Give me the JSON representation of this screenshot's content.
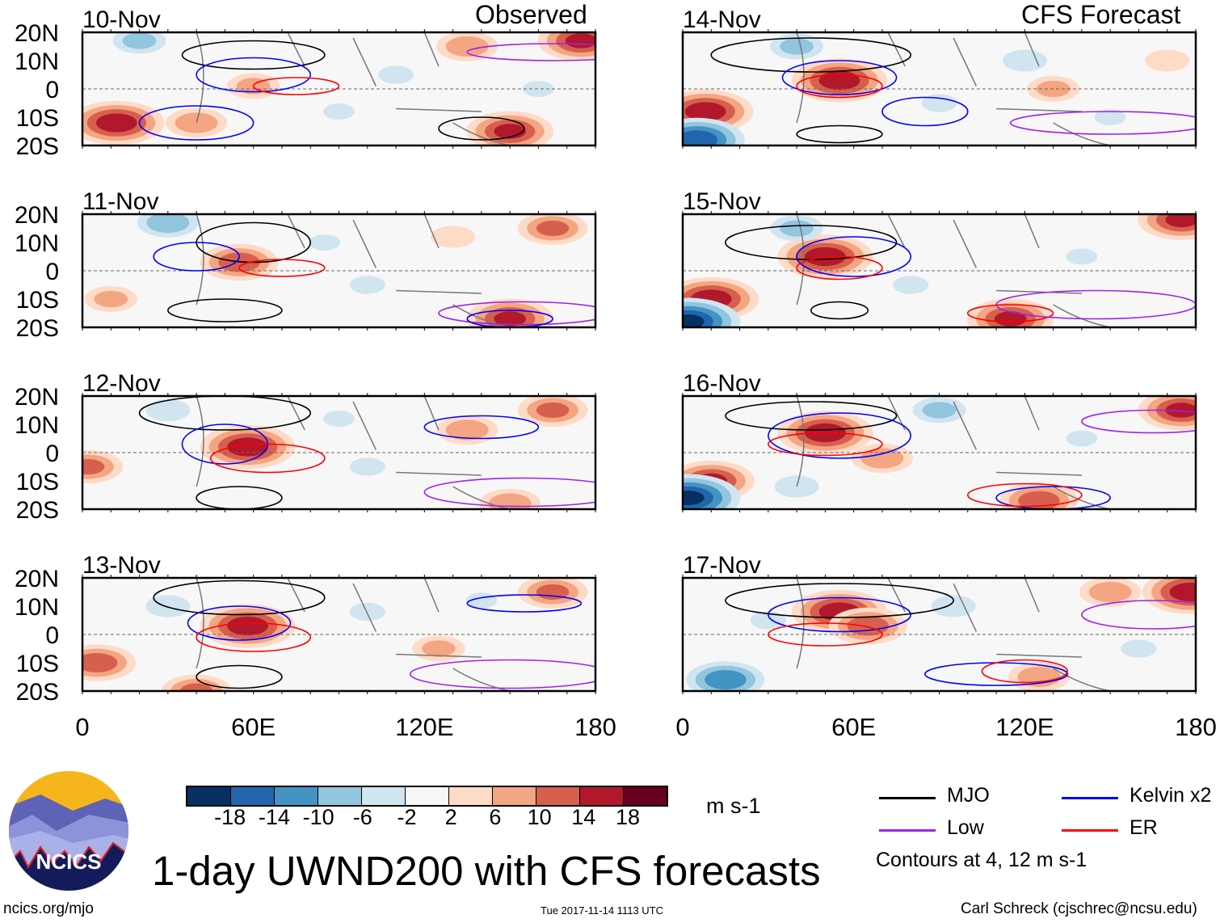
{
  "header": {
    "left_label": "Observed",
    "right_label": "CFS Forecast"
  },
  "lat_ticks": [
    "20N",
    "10N",
    "0",
    "10S",
    "20S"
  ],
  "lon_ticks": [
    "0",
    "60E",
    "120E",
    "180"
  ],
  "colorbar": {
    "colors": [
      "#053061",
      "#2166ac",
      "#4393c3",
      "#92c5de",
      "#d1e5f0",
      "#f7f7f7",
      "#fddbc7",
      "#f4a582",
      "#d6604d",
      "#b2182b",
      "#67001f"
    ],
    "labels": [
      "-18",
      "-14",
      "-10",
      "-6",
      "-2",
      "2",
      "6",
      "10",
      "14",
      "18"
    ],
    "units": "m s-1"
  },
  "legend": {
    "items": [
      {
        "label": "MJO",
        "color": "#000000"
      },
      {
        "label": "Kelvin x2",
        "color": "#0000ff"
      },
      {
        "label": "Low",
        "color": "#a020f0"
      },
      {
        "label": "ER",
        "color": "#ff0000"
      }
    ],
    "note": "Contours at 4, 12 m s-1"
  },
  "title": "1-day UWND200 with CFS forecasts",
  "logo_text": "NCICS",
  "footer": {
    "left": "ncics.org/mjo",
    "center": "Tue 2017-11-14 1113 UTC",
    "right": "Carl Schreck (cjschrec@ncsu.edu)"
  },
  "chart_data": {
    "type": "heatmap",
    "variable": "200-hPa zonal wind anomaly (m s-1)",
    "lon_range": [
      0,
      180
    ],
    "lat_range": [
      -20,
      20
    ],
    "panels": [
      {
        "date": "10-Nov",
        "column": "observed",
        "blobs": [
          [
            135,
            15,
            10
          ],
          [
            175,
            17,
            16
          ],
          [
            12,
            -12,
            18
          ],
          [
            60,
            1,
            8
          ],
          [
            150,
            -15,
            16
          ],
          [
            40,
            -12,
            10
          ],
          [
            20,
            17,
            -8
          ],
          [
            110,
            5,
            -4
          ],
          [
            90,
            -8,
            -3
          ],
          [
            160,
            0,
            -3
          ]
        ],
        "contours": [
          [
            "MJO",
            60,
            12,
            25,
            5
          ],
          [
            "Kelvin",
            60,
            5,
            20,
            6
          ],
          [
            "ER",
            75,
            1,
            15,
            3
          ],
          [
            "MJO",
            140,
            -14,
            15,
            4
          ],
          [
            "Low",
            165,
            13,
            30,
            3
          ],
          [
            "Kelvin",
            40,
            -12,
            20,
            6
          ]
        ]
      },
      {
        "date": "11-Nov",
        "column": "observed",
        "blobs": [
          [
            165,
            15,
            12
          ],
          [
            55,
            3,
            14
          ],
          [
            30,
            17,
            -10
          ],
          [
            150,
            -17,
            16
          ],
          [
            10,
            -10,
            8
          ],
          [
            100,
            -5,
            -4
          ],
          [
            130,
            12,
            6
          ],
          [
            85,
            10,
            -3
          ]
        ],
        "contours": [
          [
            "MJO",
            60,
            10,
            20,
            7
          ],
          [
            "ER",
            70,
            1,
            15,
            3
          ],
          [
            "Kelvin",
            40,
            5,
            15,
            5
          ],
          [
            "MJO",
            50,
            -14,
            20,
            4
          ],
          [
            "Low",
            155,
            -15,
            30,
            4
          ],
          [
            "Kelvin",
            150,
            -17,
            15,
            3
          ]
        ]
      },
      {
        "date": "12-Nov",
        "column": "observed",
        "blobs": [
          [
            58,
            2,
            18
          ],
          [
            165,
            15,
            12
          ],
          [
            135,
            8,
            10
          ],
          [
            2,
            -5,
            12
          ],
          [
            150,
            -18,
            10
          ],
          [
            100,
            -5,
            -4
          ],
          [
            30,
            15,
            -6
          ],
          [
            90,
            12,
            -3
          ]
        ],
        "contours": [
          [
            "MJO",
            50,
            14,
            30,
            6
          ],
          [
            "Kelvin",
            50,
            3,
            15,
            7
          ],
          [
            "ER",
            65,
            -2,
            20,
            5
          ],
          [
            "MJO",
            55,
            -16,
            15,
            4
          ],
          [
            "Low",
            155,
            -14,
            35,
            5
          ],
          [
            "Kelvin",
            140,
            9,
            20,
            4
          ]
        ]
      },
      {
        "date": "13-Nov",
        "column": "observed",
        "blobs": [
          [
            58,
            3,
            18
          ],
          [
            165,
            15,
            12
          ],
          [
            5,
            -10,
            14
          ],
          [
            125,
            -5,
            8
          ],
          [
            40,
            -20,
            12
          ],
          [
            30,
            10,
            -6
          ],
          [
            100,
            8,
            -4
          ],
          [
            140,
            12,
            -3
          ]
        ],
        "contours": [
          [
            "MJO",
            55,
            13,
            30,
            6
          ],
          [
            "Kelvin",
            55,
            4,
            18,
            6
          ],
          [
            "ER",
            60,
            -1,
            20,
            5
          ],
          [
            "MJO",
            55,
            -15,
            15,
            4
          ],
          [
            "Low",
            150,
            -14,
            35,
            5
          ],
          [
            "Kelvin",
            155,
            11,
            20,
            3
          ]
        ]
      },
      {
        "date": "14-Nov",
        "column": "forecast",
        "blobs": [
          [
            55,
            3,
            18
          ],
          [
            8,
            -8,
            18
          ],
          [
            5,
            -18,
            -18
          ],
          [
            120,
            10,
            -6
          ],
          [
            170,
            10,
            6
          ],
          [
            130,
            0,
            8
          ],
          [
            40,
            15,
            -8
          ],
          [
            90,
            -5,
            -4
          ],
          [
            150,
            -10,
            -3
          ]
        ],
        "contours": [
          [
            "MJO",
            45,
            12,
            35,
            6
          ],
          [
            "Kelvin",
            55,
            4,
            20,
            6
          ],
          [
            "ER",
            55,
            1,
            15,
            4
          ],
          [
            "Kelvin",
            85,
            -8,
            15,
            5
          ],
          [
            "MJO",
            55,
            -16,
            15,
            3
          ],
          [
            "Low",
            150,
            -12,
            35,
            4
          ]
        ]
      },
      {
        "date": "15-Nov",
        "column": "forecast",
        "blobs": [
          [
            50,
            5,
            18
          ],
          [
            10,
            -10,
            18
          ],
          [
            2,
            -18,
            -20
          ],
          [
            175,
            18,
            16
          ],
          [
            115,
            -17,
            16
          ],
          [
            40,
            15,
            -8
          ],
          [
            80,
            -5,
            -4
          ],
          [
            140,
            5,
            -3
          ]
        ],
        "contours": [
          [
            "MJO",
            45,
            10,
            30,
            6
          ],
          [
            "Kelvin",
            60,
            5,
            20,
            7
          ],
          [
            "ER",
            55,
            1,
            15,
            4
          ],
          [
            "MJO",
            55,
            -14,
            10,
            3
          ],
          [
            "ER",
            115,
            -15,
            15,
            3
          ],
          [
            "Low",
            145,
            -12,
            35,
            5
          ]
        ]
      },
      {
        "date": "16-Nov",
        "column": "forecast",
        "blobs": [
          [
            50,
            7,
            18
          ],
          [
            10,
            -10,
            16
          ],
          [
            2,
            -16,
            -20
          ],
          [
            175,
            15,
            16
          ],
          [
            125,
            -17,
            14
          ],
          [
            70,
            -2,
            10
          ],
          [
            90,
            15,
            -8
          ],
          [
            140,
            5,
            -3
          ],
          [
            40,
            -12,
            -6
          ]
        ],
        "contours": [
          [
            "MJO",
            45,
            13,
            30,
            5
          ],
          [
            "Kelvin",
            55,
            6,
            25,
            8
          ],
          [
            "ER",
            50,
            3,
            20,
            4
          ],
          [
            "Kelvin",
            130,
            -16,
            20,
            4
          ],
          [
            "ER",
            120,
            -15,
            20,
            4
          ],
          [
            "Low",
            165,
            11,
            25,
            4
          ]
        ]
      },
      {
        "date": "17-Nov",
        "column": "forecast",
        "blobs": [
          [
            55,
            8,
            18
          ],
          [
            65,
            3,
            14
          ],
          [
            178,
            15,
            18
          ],
          [
            150,
            15,
            10
          ],
          [
            125,
            -15,
            10
          ],
          [
            15,
            -16,
            -14
          ],
          [
            95,
            10,
            -6
          ],
          [
            160,
            -5,
            -4
          ],
          [
            30,
            5,
            -4
          ]
        ],
        "contours": [
          [
            "MJO",
            55,
            12,
            40,
            6
          ],
          [
            "Kelvin",
            55,
            7,
            25,
            6
          ],
          [
            "ER",
            50,
            0,
            20,
            4
          ],
          [
            "Kelvin",
            110,
            -14,
            25,
            4
          ],
          [
            "ER",
            120,
            -13,
            15,
            4
          ],
          [
            "Low",
            165,
            7,
            25,
            5
          ]
        ]
      }
    ]
  }
}
